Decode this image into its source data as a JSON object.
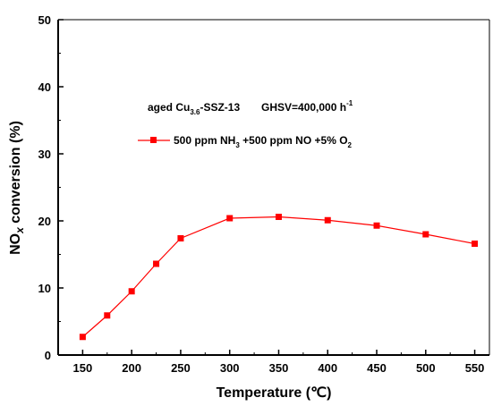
{
  "chart_data": {
    "type": "line",
    "xlabel": "Temperature",
    "xlabel_unit": "(℃)",
    "ylabel": {
      "prefix": "NO",
      "sub": "x",
      "suffix": " conversion (%)"
    },
    "xlim": [
      125,
      565
    ],
    "ylim": [
      0,
      50
    ],
    "xticks": [
      150,
      200,
      250,
      300,
      350,
      400,
      450,
      500,
      550
    ],
    "yticks": [
      0,
      10,
      20,
      30,
      40,
      50
    ],
    "annotation": {
      "part1": "aged Cu",
      "sub": "3.6",
      "part2": "-SSZ-13",
      "part3": "GHSV=400,000 h",
      "sup": "-1"
    },
    "legend_position": "top-left",
    "colors": {
      "series": "#ff0000",
      "axis": "#000000"
    },
    "series": [
      {
        "name": {
          "p1": "500 ppm NH",
          "s1": "3",
          "p2": " +500 ppm NO +5% O",
          "s2": "2"
        },
        "x": [
          150,
          175,
          200,
          225,
          250,
          300,
          350,
          400,
          450,
          500,
          550
        ],
        "y": [
          2.7,
          5.9,
          9.5,
          13.6,
          17.4,
          20.4,
          20.6,
          20.1,
          19.3,
          18.0,
          16.6
        ]
      }
    ]
  }
}
